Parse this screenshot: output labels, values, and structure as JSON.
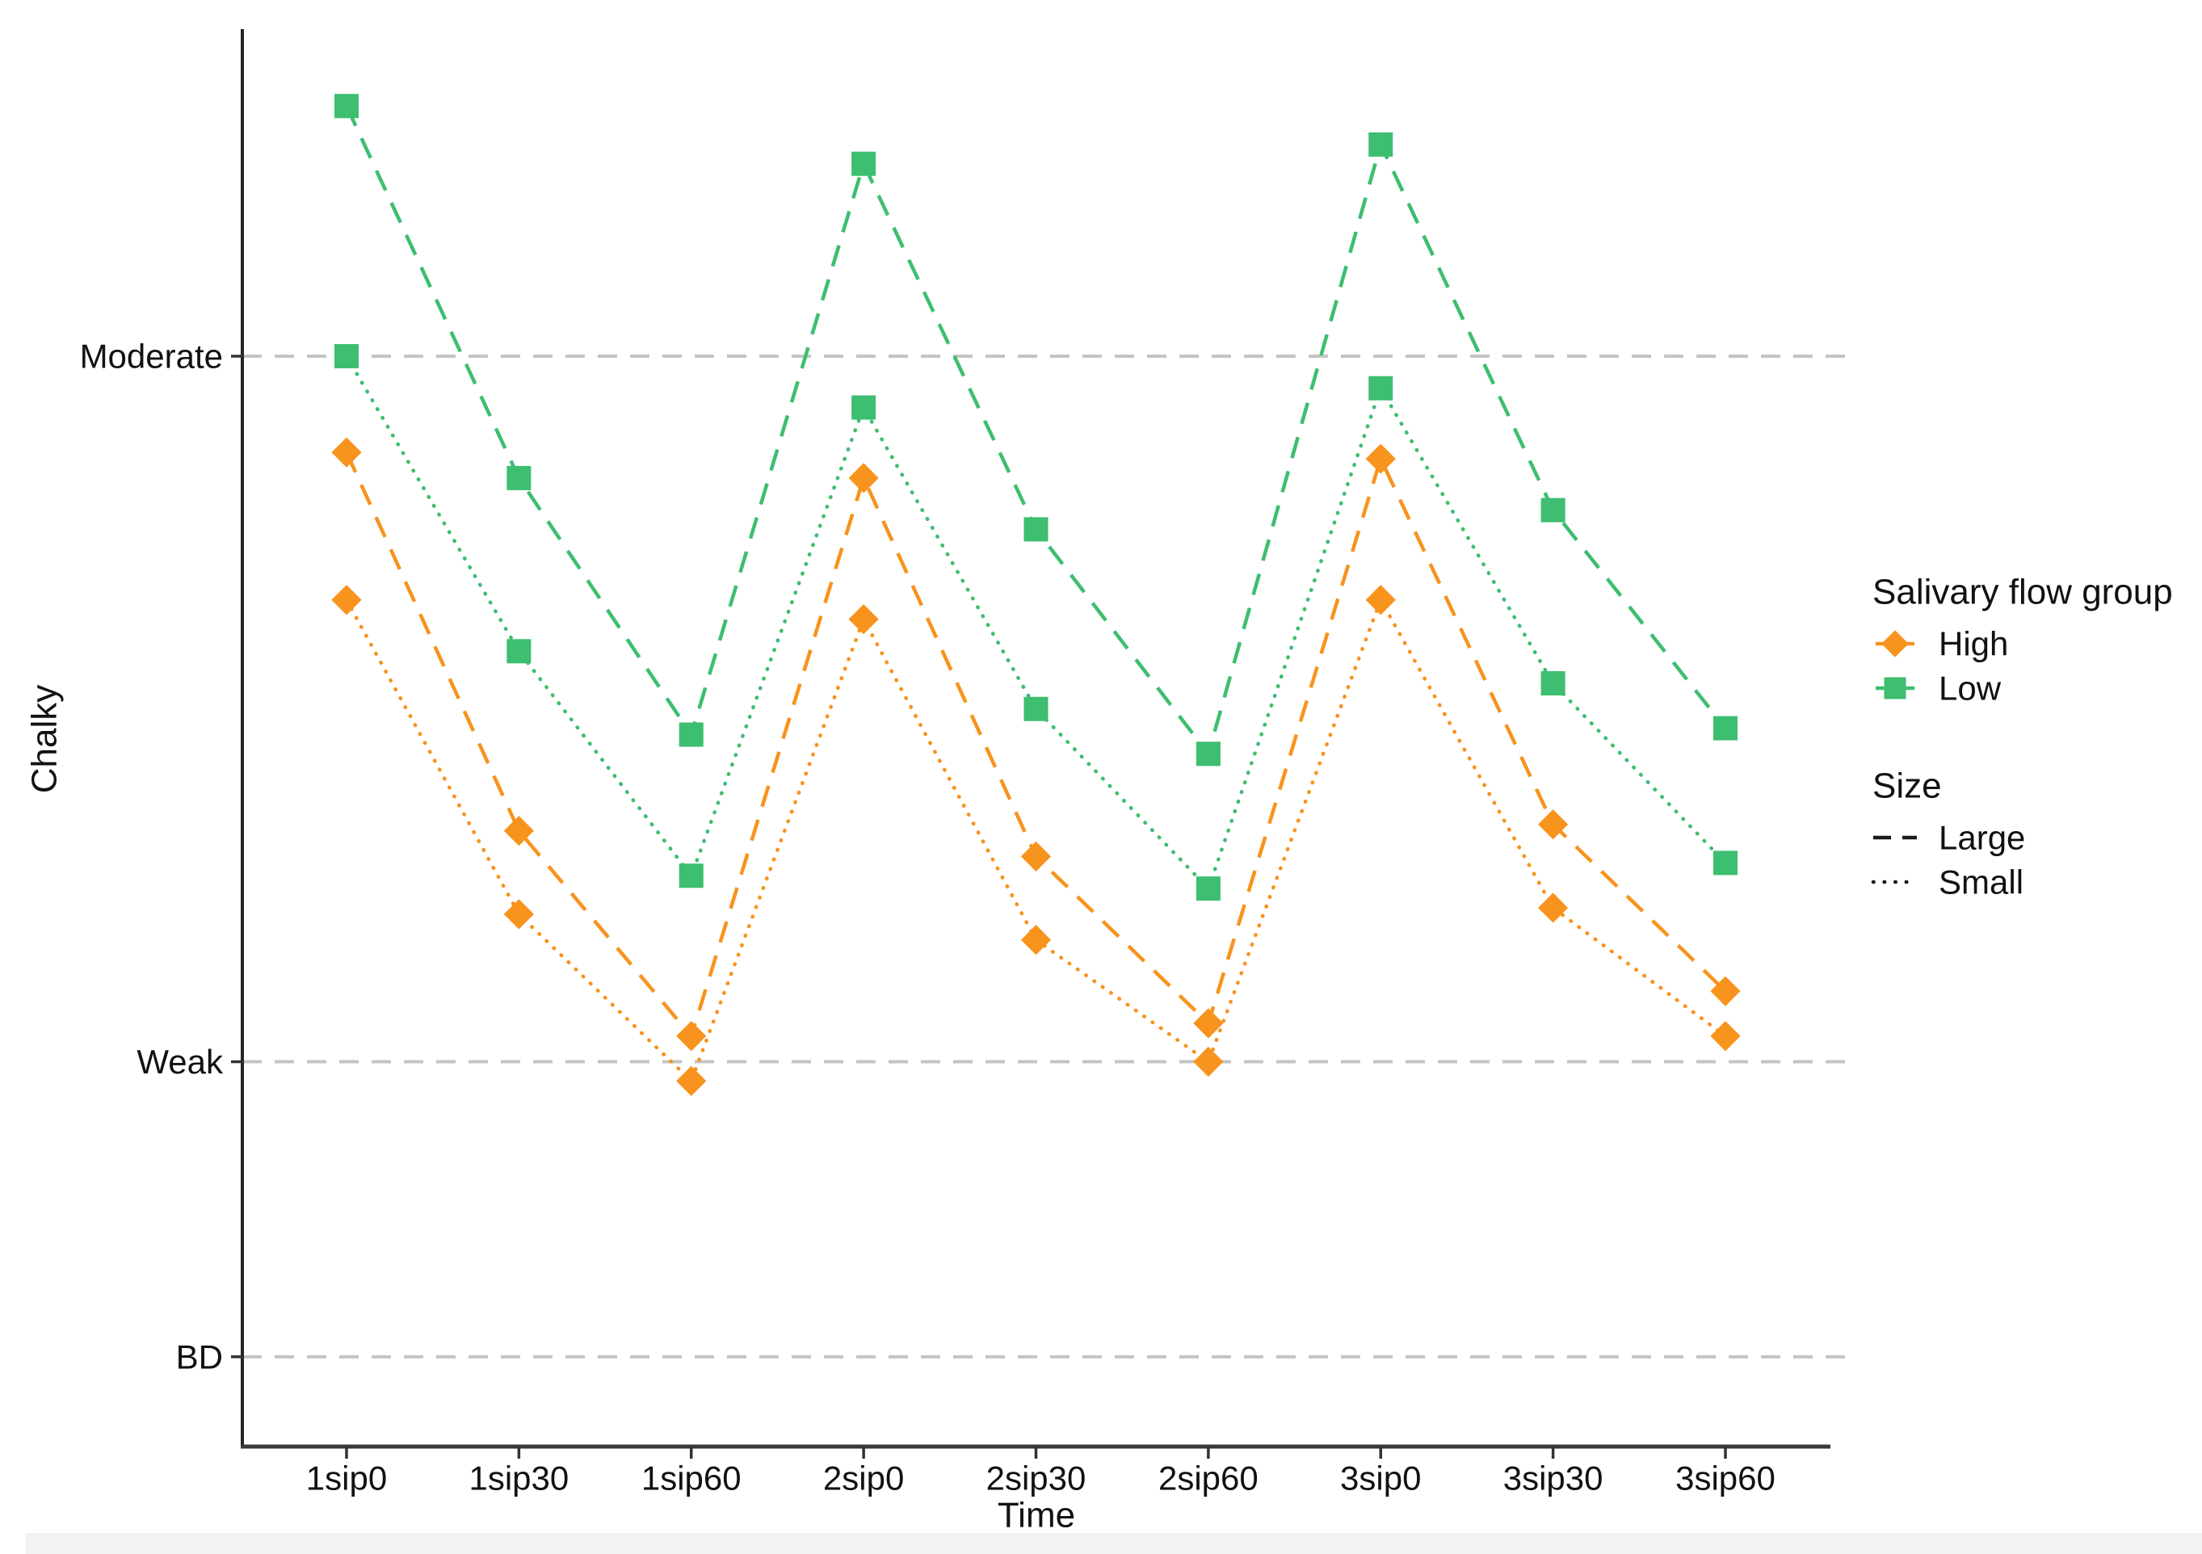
{
  "figure": {
    "background": "#ffffff",
    "footer_strip_color": "#f2f2f2"
  },
  "axes": {
    "axis_color": "#3a3a3a",
    "grid_color": "#c4c4c4",
    "text_color": "#111111",
    "grid_style": "dashed horizontal lines at labeled intensity levels"
  },
  "chart_data": {
    "type": "line",
    "title": "",
    "xlabel": "Time",
    "ylabel": "Chalky",
    "categories": [
      "1sip0",
      "1sip30",
      "1sip60",
      "2sip0",
      "2sip30",
      "2sip60",
      "3sip0",
      "3sip30",
      "3sip60"
    ],
    "y_anchors": [
      {
        "label": "Moderate",
        "value": 17
      },
      {
        "label": "Weak",
        "value": 6
      },
      {
        "label": "BD",
        "value": 1.4
      }
    ],
    "ylim": [
      0,
      22.1
    ],
    "legend_position": "right",
    "series": [
      {
        "name": "High / Large",
        "group": "High",
        "size": "Large",
        "color": "#F8931D",
        "marker": "diamond",
        "line": "dashed",
        "values": [
          15.5,
          9.6,
          6.4,
          15.1,
          9.2,
          6.6,
          15.4,
          9.7,
          7.1
        ]
      },
      {
        "name": "High / Small",
        "group": "High",
        "size": "Small",
        "color": "#F8931D",
        "marker": "diamond",
        "line": "dotted",
        "values": [
          13.2,
          8.3,
          5.7,
          12.9,
          7.9,
          6.0,
          13.2,
          8.4,
          6.4
        ]
      },
      {
        "name": "Low / Large",
        "group": "Low",
        "size": "Large",
        "color": "#3DBE70",
        "marker": "square",
        "line": "dashed",
        "values": [
          20.9,
          15.1,
          11.1,
          20.0,
          14.3,
          10.8,
          20.3,
          14.6,
          11.2
        ]
      },
      {
        "name": "Low / Small",
        "group": "Low",
        "size": "Small",
        "color": "#3DBE70",
        "marker": "square",
        "line": "dotted",
        "values": [
          17.0,
          12.4,
          8.9,
          16.2,
          11.5,
          8.7,
          16.5,
          11.9,
          9.1
        ]
      }
    ]
  },
  "legend": {
    "group_title": "Salivary flow group",
    "group_items": [
      {
        "label": "High",
        "color": "#F8931D",
        "marker": "diamond"
      },
      {
        "label": "Low",
        "color": "#3DBE70",
        "marker": "square"
      }
    ],
    "size_title": "Size",
    "size_items": [
      {
        "label": "Large",
        "style": "dashed"
      },
      {
        "label": "Small",
        "style": "dotted"
      }
    ],
    "key_line_color": "#1a1a1a"
  }
}
